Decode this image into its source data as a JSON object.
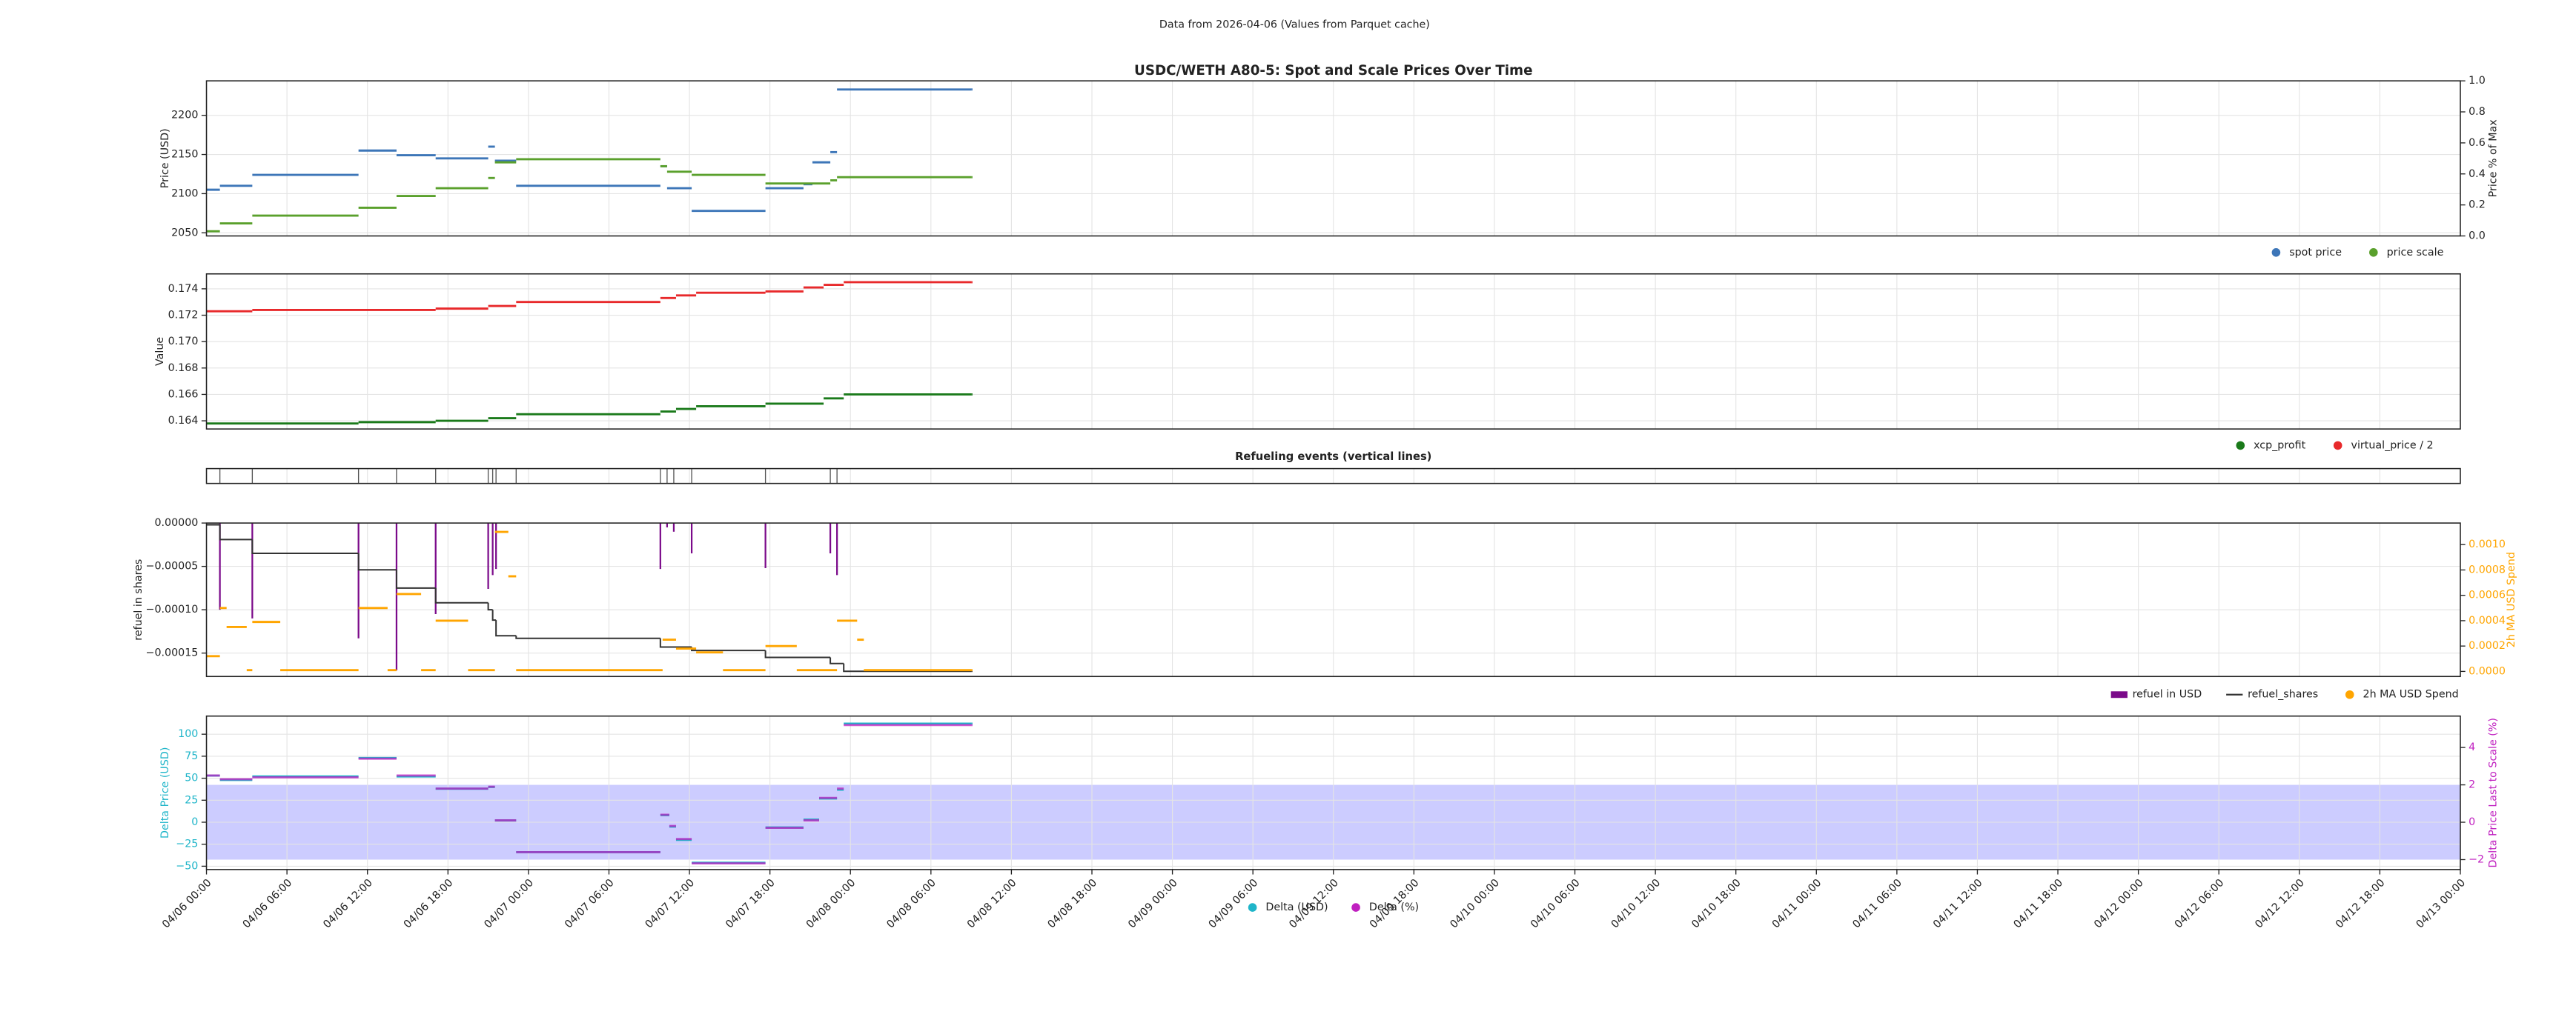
{
  "header": "Data from 2026-04-06 (Values from Parquet cache)",
  "x_axis": {
    "xlim": [
      "04/06 00:00",
      "04/13 00:00"
    ],
    "xticks": [
      "04/06 00:00",
      "04/06 06:00",
      "04/06 12:00",
      "04/06 18:00",
      "04/07 00:00",
      "04/07 06:00",
      "04/07 12:00",
      "04/07 18:00",
      "04/08 00:00",
      "04/08 06:00",
      "04/08 12:00",
      "04/08 18:00",
      "04/09 00:00",
      "04/09 06:00",
      "04/09 12:00",
      "04/09 18:00",
      "04/10 00:00",
      "04/10 06:00",
      "04/10 12:00",
      "04/10 18:00",
      "04/11 00:00",
      "04/11 06:00",
      "04/11 12:00",
      "04/11 18:00",
      "04/12 00:00",
      "04/12 06:00",
      "04/12 12:00",
      "04/12 18:00",
      "04/13 00:00"
    ]
  },
  "chart_data": [
    {
      "type": "step",
      "title": "USDC/WETH A80-5: Spot and Scale Prices Over Time",
      "ylabel": "Price (USD)",
      "y2label": "Price % of Max",
      "ylim": [
        2046,
        2244
      ],
      "yticks": [
        2050,
        2100,
        2150,
        2200
      ],
      "y2lim": [
        0,
        1
      ],
      "y2ticks": [
        {
          "value": 0,
          "label": "0.0"
        },
        0.2,
        0.4,
        0.6,
        0.8,
        {
          "value": 1,
          "label": "1.0"
        }
      ],
      "grid": true,
      "legend": "below right",
      "series": [
        {
          "name": "spot price",
          "color": "#3d76b8",
          "type": "segments",
          "x": [
            "04/06 00:00",
            "04/06 01:00",
            "04/06 03:25",
            "04/06 11:20",
            "04/06 14:10",
            "04/06 17:05",
            "04/06 21:00",
            "04/06 21:30",
            "04/06 23:05",
            "04/07 09:50",
            "04/07 10:20",
            "04/07 12:10",
            "04/07 17:40",
            "04/07 20:30",
            "04/07 21:10",
            "04/07 22:30",
            "04/07 23:00",
            "04/08 09:00"
          ],
          "values": [
            2105,
            2110,
            2124,
            2155,
            2149,
            2145,
            2160,
            2142,
            2110,
            2135,
            2107,
            2078,
            2107,
            2112,
            2140,
            2153,
            2233,
            2233
          ]
        },
        {
          "name": "price scale",
          "color": "#5aa02c",
          "type": "segments",
          "x": [
            "04/06 00:00",
            "04/06 01:00",
            "04/06 03:25",
            "04/06 11:20",
            "04/06 14:10",
            "04/06 17:05",
            "04/06 21:00",
            "04/06 21:30",
            "04/06 23:05",
            "04/07 09:50",
            "04/07 10:20",
            "04/07 12:10",
            "04/07 17:40",
            "04/07 22:30",
            "04/07 23:00",
            "04/08 09:00"
          ],
          "values": [
            2052,
            2062,
            2072,
            2082,
            2097,
            2107,
            2120,
            2140,
            2144,
            2135,
            2128,
            2124,
            2113,
            2117,
            2121,
            2121
          ]
        }
      ]
    },
    {
      "type": "step",
      "ylabel": "Value",
      "ylim": [
        0.16338,
        0.17513
      ],
      "yticks": [
        0.164,
        0.166,
        0.168,
        {
          "value": 0.17,
          "label": "0.170"
        },
        0.172,
        0.174
      ],
      "grid": true,
      "legend": "below right",
      "series": [
        {
          "name": "xcp_profit",
          "color": "#1a7a1a",
          "type": "segments",
          "x": [
            "04/06 00:00",
            "04/06 11:20",
            "04/06 17:05",
            "04/06 21:00",
            "04/06 23:05",
            "04/07 09:50",
            "04/07 11:00",
            "04/07 12:30",
            "04/07 17:40",
            "04/07 22:00",
            "04/07 23:30",
            "04/08 09:00"
          ],
          "values": [
            0.1638,
            0.1639,
            0.164,
            0.1642,
            0.1645,
            0.1647,
            0.1649,
            0.1651,
            0.1653,
            0.1657,
            0.166,
            0.166
          ]
        },
        {
          "name": "virtual_price / 2",
          "color": "#e8292b",
          "type": "segments",
          "x": [
            "04/06 00:00",
            "04/06 03:25",
            "04/06 17:05",
            "04/06 21:00",
            "04/06 23:05",
            "04/07 09:50",
            "04/07 11:00",
            "04/07 12:30",
            "04/07 17:40",
            "04/07 20:30",
            "04/07 22:00",
            "04/07 23:30",
            "04/08 09:00"
          ],
          "values": [
            0.1723,
            0.1724,
            0.1725,
            0.1727,
            0.173,
            0.1733,
            0.1735,
            0.1737,
            0.1738,
            0.1741,
            0.1743,
            0.1745,
            0.1745
          ]
        }
      ]
    },
    {
      "type": "events",
      "title": "Refueling events (vertical lines)",
      "x": [
        "04/06 01:00",
        "04/06 03:25",
        "04/06 11:20",
        "04/06 14:10",
        "04/06 17:05",
        "04/06 21:00",
        "04/06 21:20",
        "04/06 21:35",
        "04/06 23:05",
        "04/07 09:50",
        "04/07 10:20",
        "04/07 10:50",
        "04/07 12:10",
        "04/07 17:40",
        "04/07 22:30",
        "04/07 23:00"
      ]
    },
    {
      "type": "step",
      "ylabel": "refuel in shares",
      "y2label": "2h MA USD Spend",
      "y2_color": "#ffa500",
      "ylim": [
        -0.000177,
        0
      ],
      "yticks": [
        {
          "value": 0,
          "label": "0.00000"
        },
        {
          "value": -5e-05,
          "label": "−0.00005"
        },
        {
          "value": -0.0001,
          "label": "−0.00010"
        },
        {
          "value": -0.00015,
          "label": "−0.00015"
        }
      ],
      "y2lim": [
        -4e-05,
        0.00117
      ],
      "y2ticks": [
        {
          "value": 0,
          "label": "0.0000"
        },
        {
          "value": 0.0002,
          "label": "0.0002"
        },
        {
          "value": 0.0004,
          "label": "0.0004"
        },
        {
          "value": 0.0006,
          "label": "0.0006"
        },
        {
          "value": 0.0008,
          "label": "0.0008"
        },
        {
          "value": 0.001,
          "label": "0.0010"
        }
      ],
      "grid": true,
      "legend": "below right",
      "series": [
        {
          "name": "refuel in USD",
          "color": "#7b0a8a",
          "type": "stem",
          "x": [
            "04/06 01:00",
            "04/06 03:25",
            "04/06 11:20",
            "04/06 14:10",
            "04/06 17:05",
            "04/06 21:00",
            "04/06 21:20",
            "04/06 21:35",
            "04/07 09:50",
            "04/07 10:20",
            "04/07 10:50",
            "04/07 12:10",
            "04/07 17:40",
            "04/07 22:30",
            "04/07 23:00"
          ],
          "values": [
            -0.0001,
            -0.00011,
            -0.000133,
            -0.00017,
            -0.000105,
            -7.6e-05,
            -6e-05,
            -5.3e-05,
            -5.3e-05,
            -5e-06,
            -1e-05,
            -3.5e-05,
            -5.2e-05,
            -3.5e-05,
            -6e-05
          ]
        },
        {
          "name": "refuel_shares",
          "color": "#333333",
          "type": "steps",
          "x": [
            "04/06 00:00",
            "04/06 01:00",
            "04/06 03:25",
            "04/06 11:20",
            "04/06 14:10",
            "04/06 17:05",
            "04/06 21:00",
            "04/06 21:20",
            "04/06 21:35",
            "04/06 23:05",
            "04/07 09:50",
            "04/07 12:10",
            "04/07 17:40",
            "04/07 22:30",
            "04/07 23:30",
            "04/08 09:00"
          ],
          "values": [
            -2e-06,
            -1.9e-05,
            -3.5e-05,
            -5.4e-05,
            -7.5e-05,
            -9.2e-05,
            -0.0001,
            -0.000112,
            -0.00013,
            -0.000133,
            -0.000143,
            -0.000147,
            -0.000155,
            -0.000162,
            -0.000171,
            -0.000171
          ]
        },
        {
          "name": "2h MA USD Spend",
          "color": "#ffa500",
          "type": "segments",
          "axis": "y2",
          "x": [
            "04/06 00:00",
            "04/06 01:00",
            "04/06 01:30",
            "04/06 03:00",
            "04/06 03:25",
            "04/06 05:30",
            "04/06 11:20",
            "04/06 13:30",
            "04/06 14:10",
            "04/06 16:00",
            "04/06 17:05",
            "04/06 19:30",
            "04/06 21:30",
            "04/06 22:30",
            "04/06 23:05",
            "04/07 10:00",
            "04/07 11:00",
            "04/07 12:30",
            "04/07 14:30",
            "04/07 17:40",
            "04/07 20:00",
            "04/07 23:00",
            "04/08 00:30",
            "04/08 01:00",
            "04/08 09:00"
          ],
          "values": [
            0.00012,
            0.0005,
            0.00035,
            1e-05,
            0.00039,
            1e-05,
            0.0005,
            1e-05,
            0.00061,
            1e-05,
            0.0004,
            1e-05,
            0.0011,
            0.00075,
            1e-05,
            0.00025,
            0.00018,
            0.00015,
            1e-05,
            0.0002,
            1e-05,
            0.0004,
            0.00025,
            1e-05,
            1e-05
          ]
        }
      ]
    },
    {
      "type": "step",
      "ylabel": "Delta Price (USD)",
      "y_color": "#1fb5c9",
      "y2label": "Delta Price Last to Scale (%)",
      "y2_color": "#c020c0",
      "ylim": [
        -53.75,
        120.6
      ],
      "yticks": [
        {
          "value": -50,
          "label": "−50"
        },
        {
          "value": -25,
          "label": "−25"
        },
        0,
        25,
        50,
        75,
        100
      ],
      "y2lim": [
        -2.53,
        5.68
      ],
      "y2ticks": [
        {
          "value": -2,
          "label": "−2"
        },
        0,
        2,
        4
      ],
      "band": {
        "range": [
          -2,
          2
        ],
        "axis": "y2",
        "color": "#0000ff"
      },
      "grid": true,
      "legend": "below center",
      "series": [
        {
          "name": "Delta (USD)",
          "color": "#1fb5c9",
          "type": "segments",
          "x": [
            "04/06 00:00",
            "04/06 01:00",
            "04/06 03:25",
            "04/06 11:20",
            "04/06 14:10",
            "04/06 17:05",
            "04/06 21:00",
            "04/06 21:30",
            "04/06 23:05",
            "04/07 09:50",
            "04/07 10:30",
            "04/07 11:00",
            "04/07 12:10",
            "04/07 17:40",
            "04/07 20:30",
            "04/07 21:40",
            "04/07 23:00",
            "04/07 23:30",
            "04/08 09:00"
          ],
          "values": [
            53,
            48,
            52,
            73,
            52,
            38,
            40,
            2,
            -34,
            8,
            -5,
            -20,
            -46,
            -6,
            3,
            27,
            37,
            112,
            112
          ]
        },
        {
          "name": "Delta (%)",
          "color": "#c020c0",
          "type": "segments",
          "axis": "y2",
          "x": [
            "04/06 00:00",
            "04/06 01:00",
            "04/06 03:25",
            "04/06 11:20",
            "04/06 14:10",
            "04/06 17:05",
            "04/06 21:00",
            "04/06 21:30",
            "04/06 23:05",
            "04/07 09:50",
            "04/07 10:30",
            "04/07 11:00",
            "04/07 12:10",
            "04/07 17:40",
            "04/07 20:30",
            "04/07 21:40",
            "04/07 23:00",
            "04/07 23:30",
            "04/08 09:00"
          ],
          "values": [
            2.5,
            2.3,
            2.4,
            3.4,
            2.5,
            1.8,
            1.9,
            0.1,
            -1.6,
            0.4,
            -0.2,
            -0.9,
            -2.2,
            -0.3,
            0.1,
            1.3,
            1.8,
            5.2,
            5.2
          ]
        }
      ]
    }
  ]
}
